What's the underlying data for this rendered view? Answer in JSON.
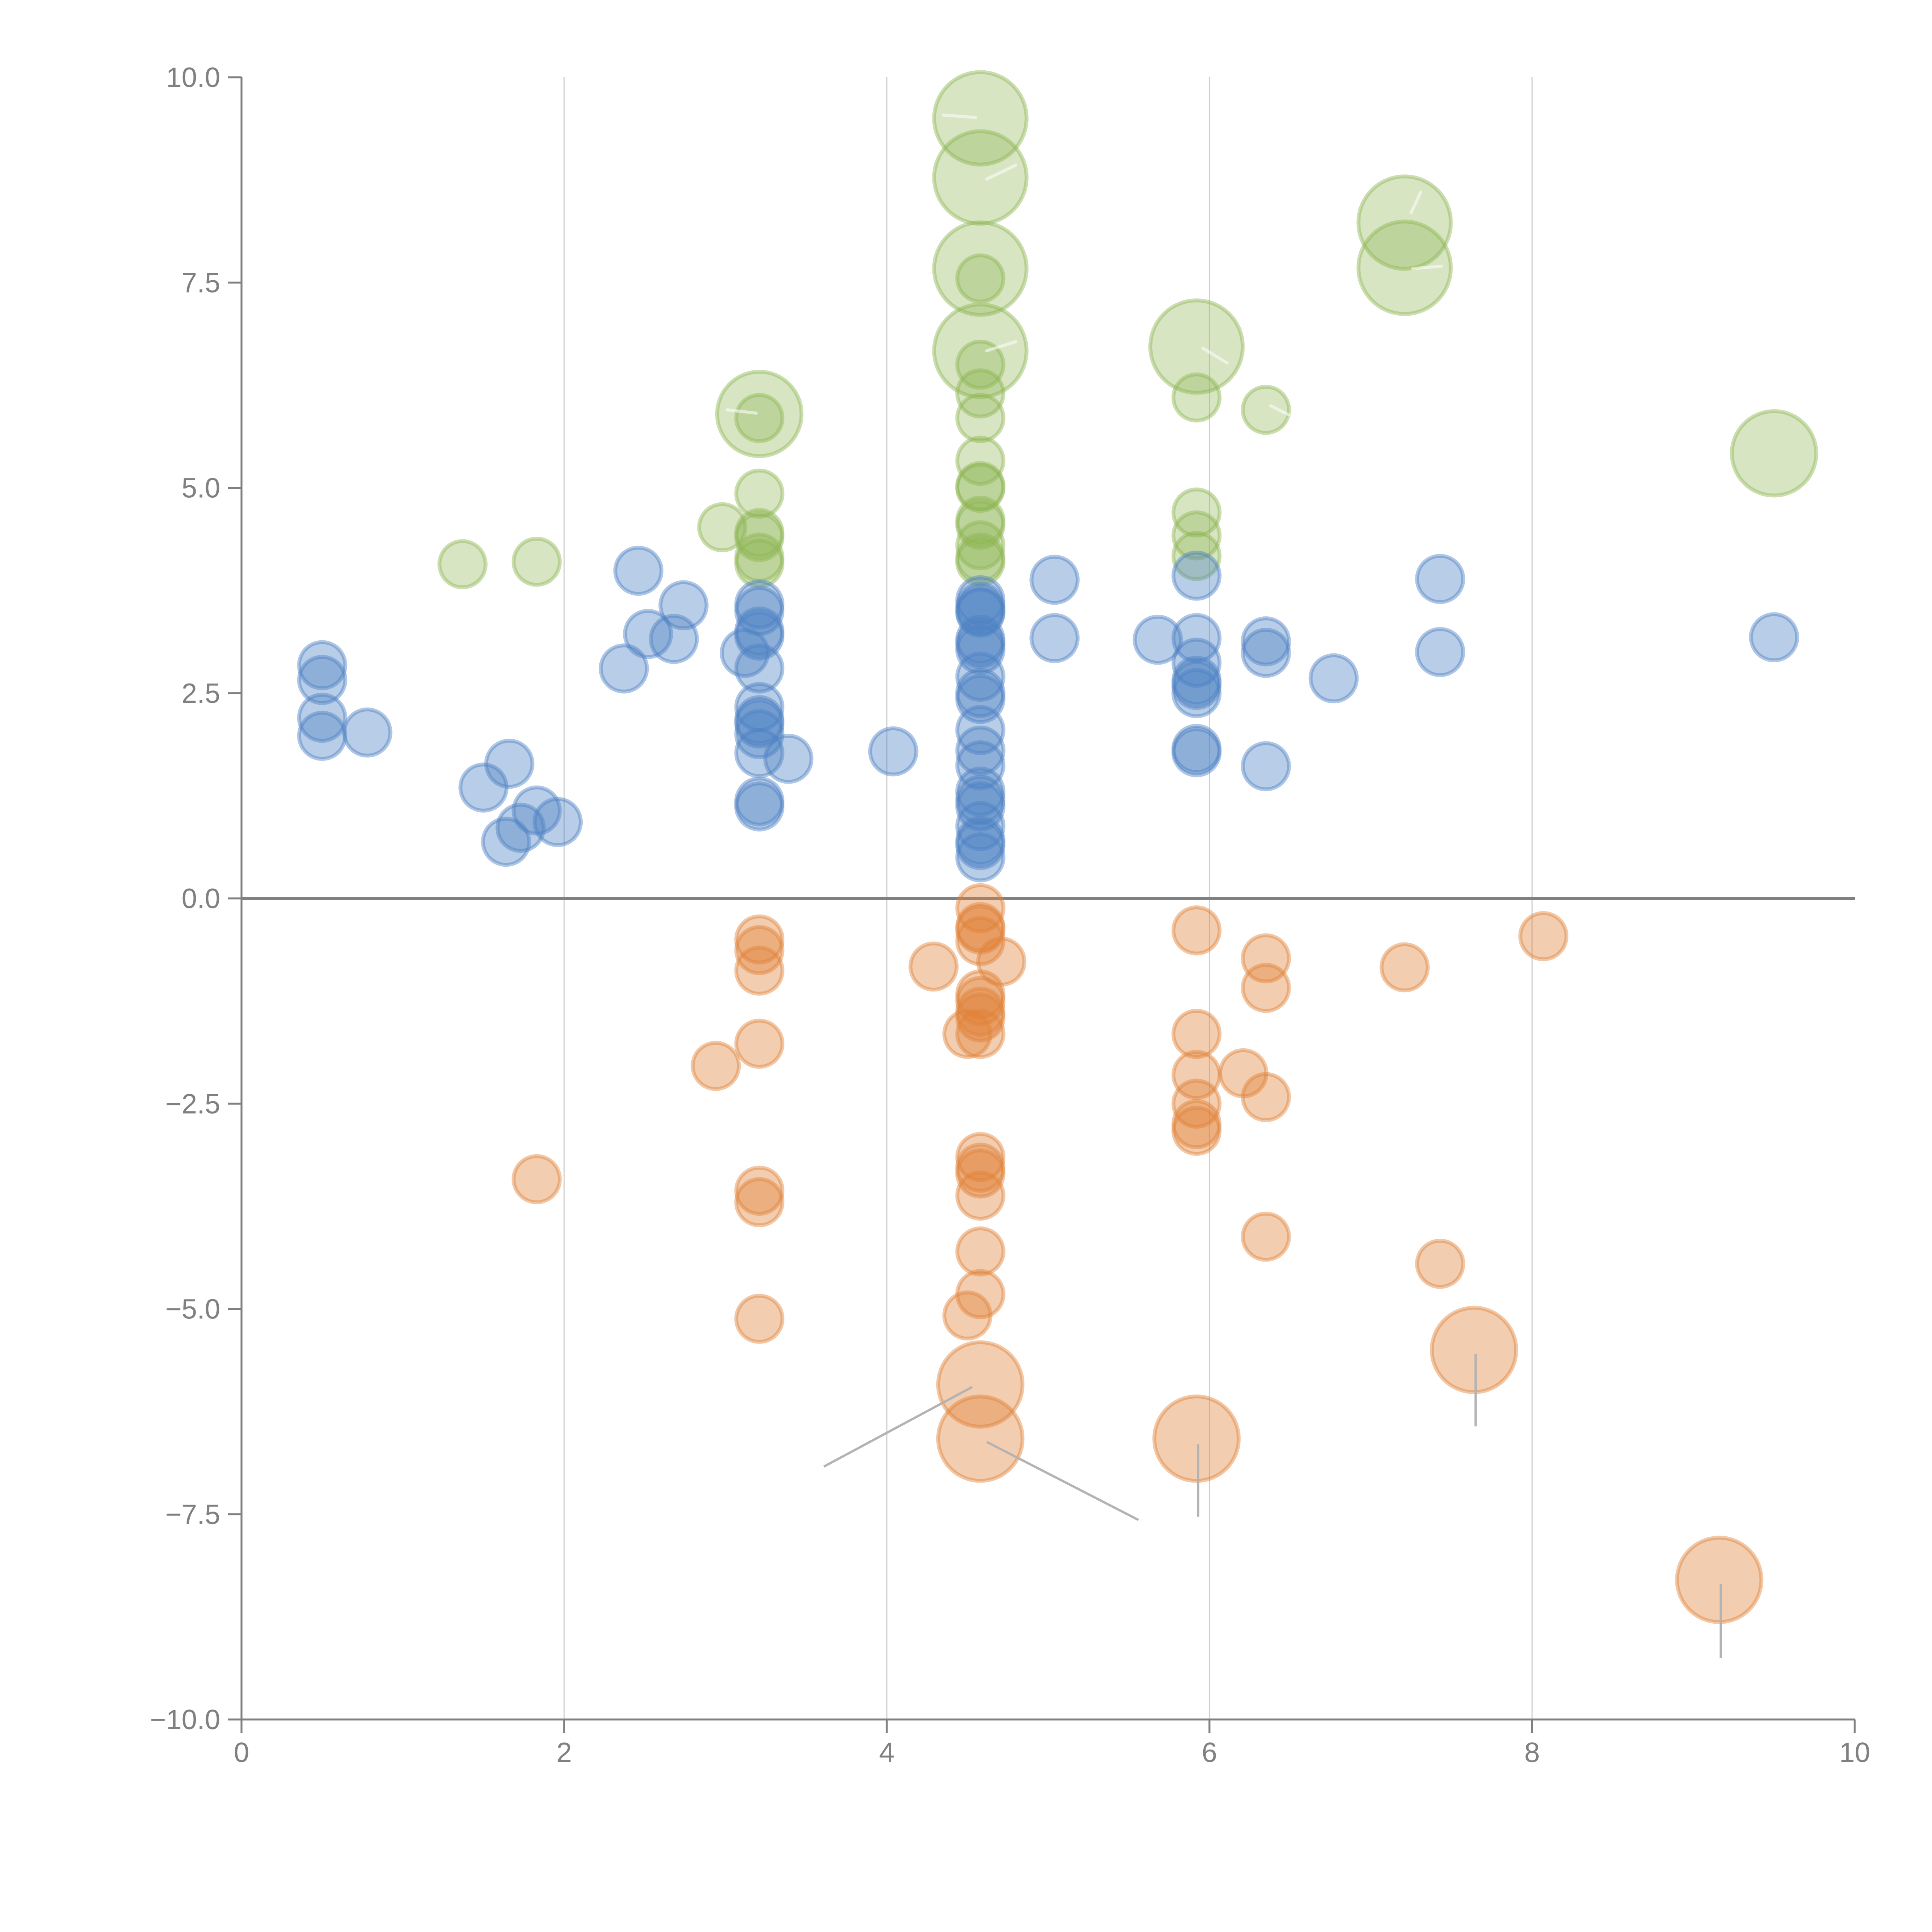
{
  "chart_data": {
    "type": "scatter",
    "title": "",
    "xlabel": "",
    "ylabel": "",
    "xlim": [
      0,
      10
    ],
    "ylim": [
      -10,
      10
    ],
    "x_ticks": [
      "0",
      "2",
      "4",
      "6",
      "8",
      "10"
    ],
    "x_tick_values": [
      0,
      2,
      4,
      6,
      8,
      10
    ],
    "y_ticks": [
      "10.0",
      "7.5",
      "5.0",
      "2.5",
      "0.0",
      "−2.5",
      "−5.0",
      "−7.5",
      "−10.0"
    ],
    "y_tick_values": [
      10,
      7.5,
      5,
      2.5,
      0,
      -2.5,
      -5,
      -7.5,
      -10
    ],
    "vertical_grid": true,
    "horizontal_zero_line": true,
    "legend": "none",
    "size_scale": "bubble radius proportional to size value (1 = small, 2.5 = large)",
    "series": [
      {
        "name": "green",
        "color": "#8db552",
        "points": [
          {
            "x": 4.58,
            "y": 9.5,
            "s": 2.3,
            "leader": "light"
          },
          {
            "x": 4.58,
            "y": 8.78,
            "s": 2.3,
            "leader": "light"
          },
          {
            "x": 4.58,
            "y": 7.67,
            "s": 2.3
          },
          {
            "x": 4.58,
            "y": 7.55,
            "s": 1.15
          },
          {
            "x": 4.58,
            "y": 6.67,
            "s": 2.3,
            "leader": "light"
          },
          {
            "x": 4.58,
            "y": 6.5,
            "s": 1.15
          },
          {
            "x": 4.58,
            "y": 6.15,
            "s": 1.15
          },
          {
            "x": 4.58,
            "y": 5.85,
            "s": 1.15
          },
          {
            "x": 4.58,
            "y": 5.33,
            "s": 1.15
          },
          {
            "x": 4.58,
            "y": 5.02,
            "s": 1.15
          },
          {
            "x": 4.58,
            "y": 5.0,
            "s": 1.15
          },
          {
            "x": 4.58,
            "y": 4.6,
            "s": 1.15
          },
          {
            "x": 4.58,
            "y": 4.55,
            "s": 1.15
          },
          {
            "x": 4.58,
            "y": 4.3,
            "s": 1.15
          },
          {
            "x": 4.58,
            "y": 4.15,
            "s": 1.15
          },
          {
            "x": 4.58,
            "y": 4.1,
            "s": 1.15
          },
          {
            "x": 7.21,
            "y": 8.23,
            "s": 2.3,
            "leader": "light"
          },
          {
            "x": 7.21,
            "y": 7.68,
            "s": 2.3,
            "leader": "light"
          },
          {
            "x": 5.92,
            "y": 6.72,
            "s": 2.3,
            "leader": "light"
          },
          {
            "x": 5.92,
            "y": 6.1,
            "s": 1.15
          },
          {
            "x": 6.35,
            "y": 5.95,
            "s": 1.15,
            "leader": "light"
          },
          {
            "x": 9.5,
            "y": 5.42,
            "s": 2.1
          },
          {
            "x": 3.21,
            "y": 5.9,
            "s": 2.1,
            "leader": "light"
          },
          {
            "x": 3.21,
            "y": 5.85,
            "s": 1.15
          },
          {
            "x": 3.21,
            "y": 4.93,
            "s": 1.15
          },
          {
            "x": 3.21,
            "y": 4.45,
            "s": 1.15
          },
          {
            "x": 3.21,
            "y": 4.4,
            "s": 1.15
          },
          {
            "x": 3.21,
            "y": 4.15,
            "s": 1.15
          },
          {
            "x": 3.21,
            "y": 4.08,
            "s": 1.15
          },
          {
            "x": 2.98,
            "y": 4.52,
            "s": 1.15
          },
          {
            "x": 1.37,
            "y": 4.07,
            "s": 1.15
          },
          {
            "x": 1.83,
            "y": 4.1,
            "s": 1.15
          },
          {
            "x": 5.92,
            "y": 4.7,
            "s": 1.15
          },
          {
            "x": 5.92,
            "y": 4.42,
            "s": 1.15
          },
          {
            "x": 5.92,
            "y": 4.17,
            "s": 1.15
          }
        ]
      },
      {
        "name": "blue",
        "color": "#4e81c4",
        "points": [
          {
            "x": 0.5,
            "y": 2.84,
            "s": 1.15
          },
          {
            "x": 0.5,
            "y": 2.66,
            "s": 1.15
          },
          {
            "x": 0.5,
            "y": 2.2,
            "s": 1.15
          },
          {
            "x": 0.5,
            "y": 1.98,
            "s": 1.15
          },
          {
            "x": 0.78,
            "y": 2.02,
            "s": 1.15
          },
          {
            "x": 1.5,
            "y": 1.35,
            "s": 1.15
          },
          {
            "x": 1.66,
            "y": 1.64,
            "s": 1.15
          },
          {
            "x": 1.64,
            "y": 0.69,
            "s": 1.15
          },
          {
            "x": 1.73,
            "y": 0.86,
            "s": 1.15
          },
          {
            "x": 1.83,
            "y": 1.07,
            "s": 1.15
          },
          {
            "x": 1.96,
            "y": 0.93,
            "s": 1.15
          },
          {
            "x": 2.37,
            "y": 2.8,
            "s": 1.15
          },
          {
            "x": 2.46,
            "y": 3.99,
            "s": 1.15
          },
          {
            "x": 2.52,
            "y": 3.22,
            "s": 1.15
          },
          {
            "x": 2.68,
            "y": 3.16,
            "s": 1.15
          },
          {
            "x": 2.74,
            "y": 3.57,
            "s": 1.15
          },
          {
            "x": 3.12,
            "y": 2.99,
            "s": 1.15
          },
          {
            "x": 3.21,
            "y": 3.58,
            "s": 1.15
          },
          {
            "x": 3.21,
            "y": 3.5,
            "s": 1.15
          },
          {
            "x": 3.21,
            "y": 3.25,
            "s": 1.15
          },
          {
            "x": 3.21,
            "y": 3.2,
            "s": 1.15
          },
          {
            "x": 3.21,
            "y": 2.8,
            "s": 1.15
          },
          {
            "x": 3.21,
            "y": 2.33,
            "s": 1.15
          },
          {
            "x": 3.21,
            "y": 2.17,
            "s": 1.15
          },
          {
            "x": 3.21,
            "y": 2.13,
            "s": 1.15
          },
          {
            "x": 3.21,
            "y": 2.0,
            "s": 1.15
          },
          {
            "x": 3.21,
            "y": 1.77,
            "s": 1.15
          },
          {
            "x": 3.21,
            "y": 1.18,
            "s": 1.15
          },
          {
            "x": 3.21,
            "y": 1.12,
            "s": 1.15
          },
          {
            "x": 3.39,
            "y": 1.7,
            "s": 1.15
          },
          {
            "x": 4.04,
            "y": 1.79,
            "s": 1.15
          },
          {
            "x": 4.58,
            "y": 3.63,
            "s": 1.15
          },
          {
            "x": 4.58,
            "y": 3.55,
            "s": 1.15
          },
          {
            "x": 4.58,
            "y": 3.5,
            "s": 1.15
          },
          {
            "x": 4.58,
            "y": 3.48,
            "s": 1.15
          },
          {
            "x": 4.58,
            "y": 3.15,
            "s": 1.15
          },
          {
            "x": 4.58,
            "y": 3.1,
            "s": 1.15
          },
          {
            "x": 4.58,
            "y": 3.03,
            "s": 1.15
          },
          {
            "x": 4.58,
            "y": 2.7,
            "s": 1.15
          },
          {
            "x": 4.58,
            "y": 2.5,
            "s": 1.15
          },
          {
            "x": 4.58,
            "y": 2.43,
            "s": 1.15
          },
          {
            "x": 4.58,
            "y": 2.05,
            "s": 1.15
          },
          {
            "x": 4.58,
            "y": 1.8,
            "s": 1.15
          },
          {
            "x": 4.58,
            "y": 1.62,
            "s": 1.15
          },
          {
            "x": 4.58,
            "y": 1.3,
            "s": 1.15
          },
          {
            "x": 4.58,
            "y": 1.2,
            "s": 1.15
          },
          {
            "x": 4.58,
            "y": 1.12,
            "s": 1.15
          },
          {
            "x": 4.58,
            "y": 0.88,
            "s": 1.15
          },
          {
            "x": 4.58,
            "y": 0.7,
            "s": 1.15
          },
          {
            "x": 4.58,
            "y": 0.65,
            "s": 1.15
          },
          {
            "x": 4.58,
            "y": 0.5,
            "s": 1.15
          },
          {
            "x": 5.04,
            "y": 3.88,
            "s": 1.15
          },
          {
            "x": 5.04,
            "y": 3.17,
            "s": 1.15
          },
          {
            "x": 5.68,
            "y": 3.15,
            "s": 1.15
          },
          {
            "x": 5.92,
            "y": 3.93,
            "s": 1.15
          },
          {
            "x": 5.92,
            "y": 3.17,
            "s": 1.15
          },
          {
            "x": 5.92,
            "y": 2.87,
            "s": 1.15
          },
          {
            "x": 5.92,
            "y": 2.65,
            "s": 1.15
          },
          {
            "x": 5.92,
            "y": 2.6,
            "s": 1.15
          },
          {
            "x": 5.92,
            "y": 2.5,
            "s": 1.15
          },
          {
            "x": 5.92,
            "y": 1.82,
            "s": 1.15
          },
          {
            "x": 5.92,
            "y": 1.78,
            "s": 1.15
          },
          {
            "x": 6.35,
            "y": 3.13,
            "s": 1.15
          },
          {
            "x": 6.35,
            "y": 2.99,
            "s": 1.15
          },
          {
            "x": 6.35,
            "y": 1.61,
            "s": 1.15
          },
          {
            "x": 6.77,
            "y": 2.68,
            "s": 1.15
          },
          {
            "x": 7.43,
            "y": 3.89,
            "s": 1.15
          },
          {
            "x": 7.43,
            "y": 3.0,
            "s": 1.15
          },
          {
            "x": 9.5,
            "y": 3.18,
            "s": 1.15
          }
        ]
      },
      {
        "name": "orange",
        "color": "#e0823a",
        "points": [
          {
            "x": 3.21,
            "y": -0.5,
            "s": 1.15
          },
          {
            "x": 3.21,
            "y": -0.63,
            "s": 1.15
          },
          {
            "x": 3.21,
            "y": -0.88,
            "s": 1.15
          },
          {
            "x": 3.21,
            "y": -1.77,
            "s": 1.15
          },
          {
            "x": 2.94,
            "y": -2.04,
            "s": 1.15
          },
          {
            "x": 1.83,
            "y": -3.42,
            "s": 1.15
          },
          {
            "x": 3.21,
            "y": -3.56,
            "s": 1.15
          },
          {
            "x": 3.21,
            "y": -3.7,
            "s": 1.15
          },
          {
            "x": 3.21,
            "y": -5.12,
            "s": 1.15
          },
          {
            "x": 4.29,
            "y": -0.83,
            "s": 1.15
          },
          {
            "x": 4.58,
            "y": -0.12,
            "s": 1.15
          },
          {
            "x": 4.58,
            "y": -0.35,
            "s": 1.15
          },
          {
            "x": 4.58,
            "y": -0.38,
            "s": 1.15
          },
          {
            "x": 4.58,
            "y": -0.52,
            "s": 1.15
          },
          {
            "x": 4.71,
            "y": -0.77,
            "s": 1.15
          },
          {
            "x": 4.58,
            "y": -1.17,
            "s": 1.15
          },
          {
            "x": 4.58,
            "y": -1.25,
            "s": 1.15
          },
          {
            "x": 4.58,
            "y": -1.38,
            "s": 1.15
          },
          {
            "x": 4.58,
            "y": -1.45,
            "s": 1.15
          },
          {
            "x": 4.5,
            "y": -1.65,
            "s": 1.15
          },
          {
            "x": 4.58,
            "y": -1.65,
            "s": 1.15
          },
          {
            "x": 4.58,
            "y": -3.15,
            "s": 1.15
          },
          {
            "x": 4.58,
            "y": -3.28,
            "s": 1.15
          },
          {
            "x": 4.58,
            "y": -3.35,
            "s": 1.15
          },
          {
            "x": 4.58,
            "y": -3.62,
            "s": 1.15
          },
          {
            "x": 4.58,
            "y": -4.3,
            "s": 1.15
          },
          {
            "x": 4.58,
            "y": -4.82,
            "s": 1.15
          },
          {
            "x": 4.5,
            "y": -5.08,
            "s": 1.15
          },
          {
            "x": 4.58,
            "y": -5.92,
            "s": 2.1,
            "leader": "dark"
          },
          {
            "x": 4.58,
            "y": -6.58,
            "s": 2.1,
            "leader": "dark"
          },
          {
            "x": 5.92,
            "y": -0.39,
            "s": 1.15
          },
          {
            "x": 5.92,
            "y": -1.65,
            "s": 1.15
          },
          {
            "x": 5.92,
            "y": -2.15,
            "s": 1.15
          },
          {
            "x": 5.92,
            "y": -2.5,
            "s": 1.15
          },
          {
            "x": 5.92,
            "y": -2.75,
            "s": 1.15
          },
          {
            "x": 5.92,
            "y": -2.83,
            "s": 1.15
          },
          {
            "x": 6.21,
            "y": -2.13,
            "s": 1.15
          },
          {
            "x": 6.35,
            "y": -0.73,
            "s": 1.15
          },
          {
            "x": 6.35,
            "y": -1.09,
            "s": 1.15
          },
          {
            "x": 6.35,
            "y": -2.42,
            "s": 1.15
          },
          {
            "x": 6.35,
            "y": -4.12,
            "s": 1.15
          },
          {
            "x": 5.92,
            "y": -6.58,
            "s": 2.1,
            "leader": "dark"
          },
          {
            "x": 7.21,
            "y": -0.84,
            "s": 1.15
          },
          {
            "x": 7.43,
            "y": -4.45,
            "s": 1.15
          },
          {
            "x": 7.64,
            "y": -5.5,
            "s": 2.1,
            "leader": "dark"
          },
          {
            "x": 8.07,
            "y": -0.46,
            "s": 1.15
          },
          {
            "x": 9.16,
            "y": -8.3,
            "s": 2.1,
            "leader": "dark"
          }
        ]
      }
    ],
    "leaders": [
      {
        "series": "orange",
        "from": [
          4.53,
          -5.95
        ],
        "to": [
          3.61,
          -6.92
        ],
        "style": "dark"
      },
      {
        "series": "orange",
        "from": [
          4.62,
          -6.62
        ],
        "to": [
          5.56,
          -7.57
        ],
        "style": "dark"
      },
      {
        "series": "orange",
        "from": [
          5.93,
          -6.65
        ],
        "to": [
          5.93,
          -7.53
        ],
        "style": "dark"
      },
      {
        "series": "orange",
        "from": [
          7.65,
          -5.55
        ],
        "to": [
          7.65,
          -6.43
        ],
        "style": "dark"
      },
      {
        "series": "orange",
        "from": [
          9.17,
          -8.35
        ],
        "to": [
          9.17,
          -9.25
        ],
        "style": "dark"
      },
      {
        "series": "green",
        "from": [
          4.55,
          9.51
        ],
        "to": [
          4.35,
          9.54
        ],
        "style": "light"
      },
      {
        "series": "green",
        "from": [
          4.62,
          8.76
        ],
        "to": [
          4.8,
          8.93
        ],
        "style": "light"
      },
      {
        "series": "green",
        "from": [
          4.62,
          6.67
        ],
        "to": [
          4.8,
          6.78
        ],
        "style": "light"
      },
      {
        "series": "green",
        "from": [
          3.19,
          5.91
        ],
        "to": [
          3.01,
          5.95
        ],
        "style": "light"
      },
      {
        "series": "green",
        "from": [
          5.96,
          6.7
        ],
        "to": [
          6.11,
          6.52
        ],
        "style": "light"
      },
      {
        "series": "green",
        "from": [
          6.38,
          6.0
        ],
        "to": [
          6.49,
          5.89
        ],
        "style": "light"
      },
      {
        "series": "green",
        "from": [
          7.25,
          8.35
        ],
        "to": [
          7.31,
          8.6
        ],
        "style": "light"
      },
      {
        "series": "green",
        "from": [
          7.26,
          7.67
        ],
        "to": [
          7.44,
          7.7
        ],
        "style": "light"
      }
    ]
  }
}
